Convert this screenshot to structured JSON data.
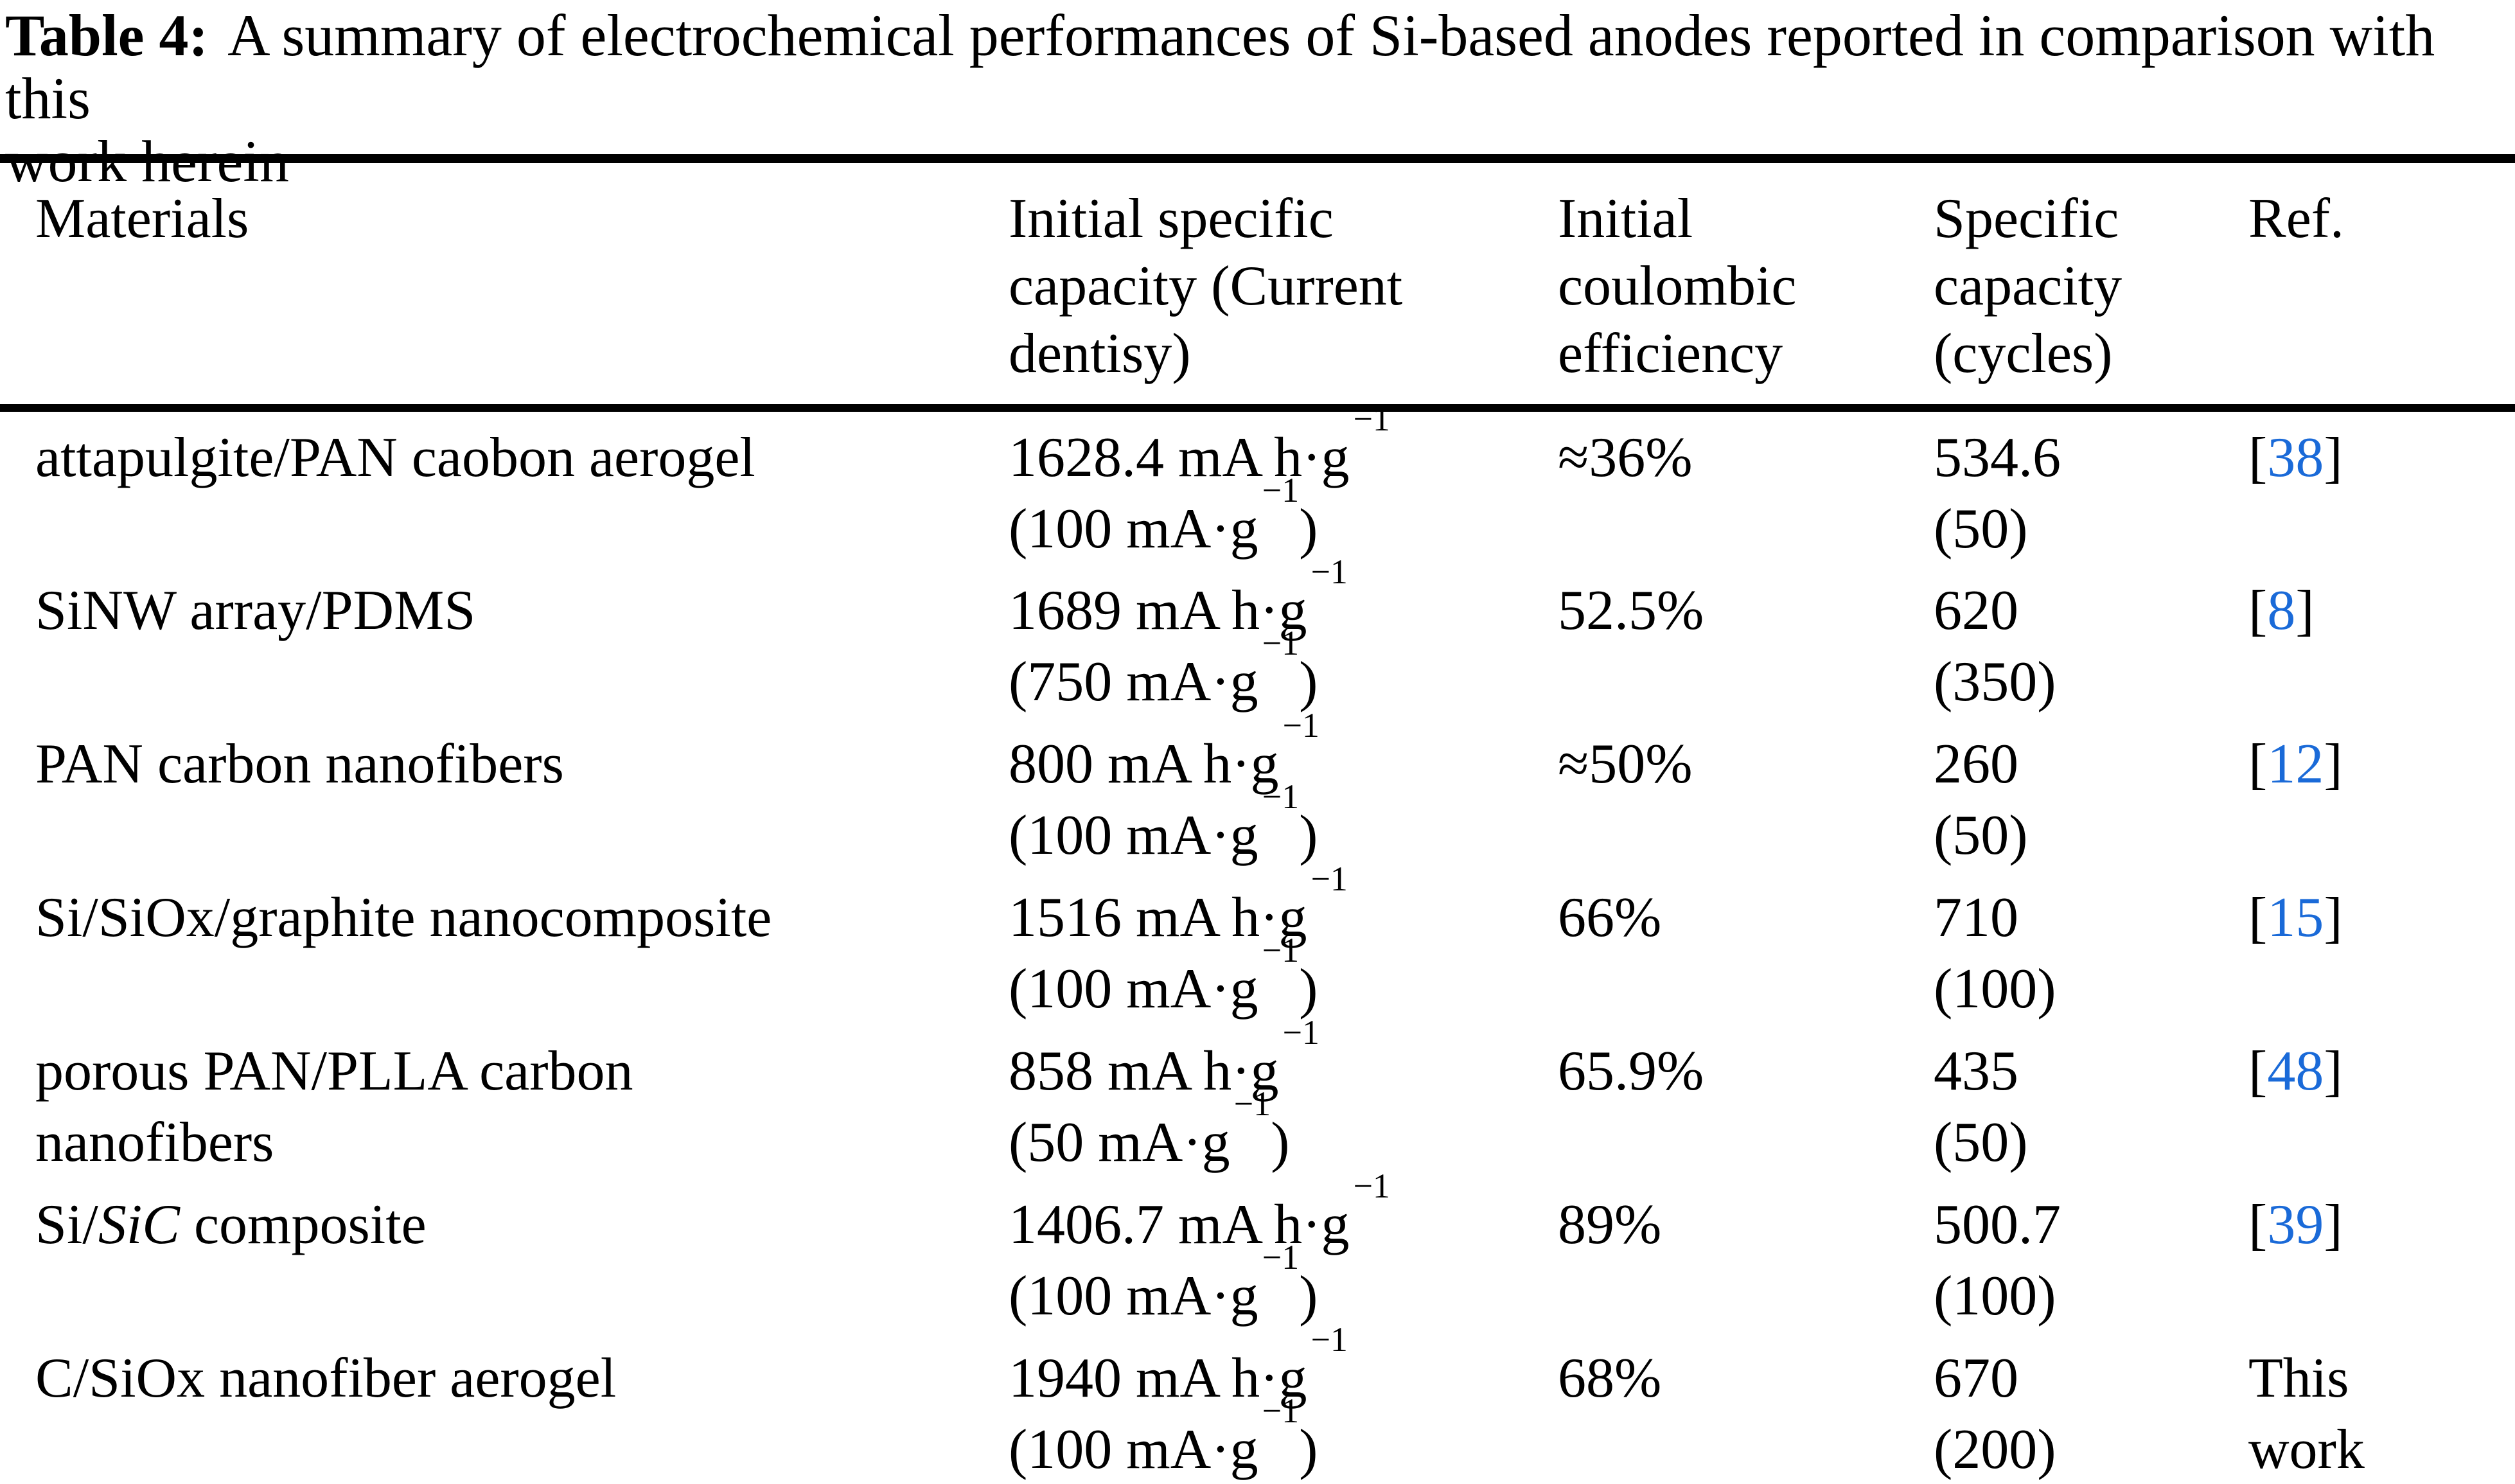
{
  "page": {
    "background": "#ffffff",
    "text_color": "#000000",
    "link_color": "#1a6ad8"
  },
  "caption": {
    "label": "Table 4:",
    "line1_rest": "A summary of electrochemical performances of Si-based anodes reported in comparison with this",
    "line2": "work herein"
  },
  "table": {
    "headers": {
      "materials": {
        "line1": "Materials",
        "line2": "",
        "line3": ""
      },
      "initial_capacity": {
        "line1": "Initial specific",
        "line2": "capacity (Current",
        "line3": "dentisy)"
      },
      "coulombic_efficiency": {
        "line1": "Initial",
        "line2": "coulombic",
        "line3": "efficiency"
      },
      "specific_capacity": {
        "line1": "Specific",
        "line2": "capacity",
        "line3": "(cycles)"
      },
      "ref": {
        "line1": "Ref.",
        "line2": "",
        "line3": ""
      }
    },
    "rows": [
      {
        "material": {
          "pre": "attapulgite/PAN caobon aerogel",
          "italic": "",
          "post": "",
          "line2": ""
        },
        "capacity": {
          "value": "1628.4 mA h·g",
          "sup": "−1",
          "current_open": "(100 mA·g",
          "current_sup": "−1",
          "current_close": ")"
        },
        "efficiency": "≈36%",
        "specific": {
          "value": "534.6",
          "cycles": "(50)"
        },
        "ref": {
          "pre": "[",
          "link": "38",
          "post": "]",
          "line2": ""
        }
      },
      {
        "material": {
          "pre": "SiNW array/PDMS",
          "italic": "",
          "post": "",
          "line2": ""
        },
        "capacity": {
          "value": "1689 mA h·g",
          "sup": "−1",
          "current_open": "(750 mA·g",
          "current_sup": "−1",
          "current_close": ")"
        },
        "efficiency": "52.5%",
        "specific": {
          "value": "620",
          "cycles": "(350)"
        },
        "ref": {
          "pre": "[",
          "link": "8",
          "post": "]",
          "line2": ""
        }
      },
      {
        "material": {
          "pre": "PAN carbon nanofibers",
          "italic": "",
          "post": "",
          "line2": ""
        },
        "capacity": {
          "value": "800 mA h·g",
          "sup": "−1",
          "current_open": "(100 mA·g",
          "current_sup": "−1",
          "current_close": ")"
        },
        "efficiency": "≈50%",
        "specific": {
          "value": "260",
          "cycles": "(50)"
        },
        "ref": {
          "pre": "[",
          "link": "12",
          "post": "]",
          "line2": ""
        }
      },
      {
        "material": {
          "pre": "Si/SiOx/graphite nanocomposite",
          "italic": "",
          "post": "",
          "line2": ""
        },
        "capacity": {
          "value": "1516 mA h·g",
          "sup": "−1",
          "current_open": "(100 mA·g",
          "current_sup": "−1",
          "current_close": ")"
        },
        "efficiency": "66%",
        "specific": {
          "value": "710",
          "cycles": "(100)"
        },
        "ref": {
          "pre": "[",
          "link": "15",
          "post": "]",
          "line2": ""
        }
      },
      {
        "material": {
          "pre": "porous PAN/PLLA carbon",
          "italic": "",
          "post": "",
          "line2": "nanofibers"
        },
        "capacity": {
          "value": "858 mA h·g",
          "sup": "−1",
          "current_open": "(50 mA·g",
          "current_sup": "−1",
          "current_close": ")"
        },
        "efficiency": "65.9%",
        "specific": {
          "value": "435",
          "cycles": "(50)"
        },
        "ref": {
          "pre": "[",
          "link": "48",
          "post": "]",
          "line2": ""
        }
      },
      {
        "material": {
          "pre": "Si/",
          "italic": "SiC",
          "post": " composite",
          "line2": ""
        },
        "capacity": {
          "value": "1406.7 mA h·g",
          "sup": "−1",
          "current_open": "(100 mA·g",
          "current_sup": "−1",
          "current_close": ")"
        },
        "efficiency": "89%",
        "specific": {
          "value": "500.7",
          "cycles": "(100)"
        },
        "ref": {
          "pre": "[",
          "link": "39",
          "post": "]",
          "line2": ""
        }
      },
      {
        "material": {
          "pre": "C/SiOx nanofiber aerogel",
          "italic": "",
          "post": "",
          "line2": ""
        },
        "capacity": {
          "value": "1940 mA h·g",
          "sup": "−1",
          "current_open": "(100 mA·g",
          "current_sup": "−1",
          "current_close": ")"
        },
        "efficiency": "68%",
        "specific": {
          "value": "670",
          "cycles": "(200)"
        },
        "ref": {
          "pre": "This",
          "link": "",
          "post": "",
          "line2": "work"
        }
      }
    ]
  }
}
